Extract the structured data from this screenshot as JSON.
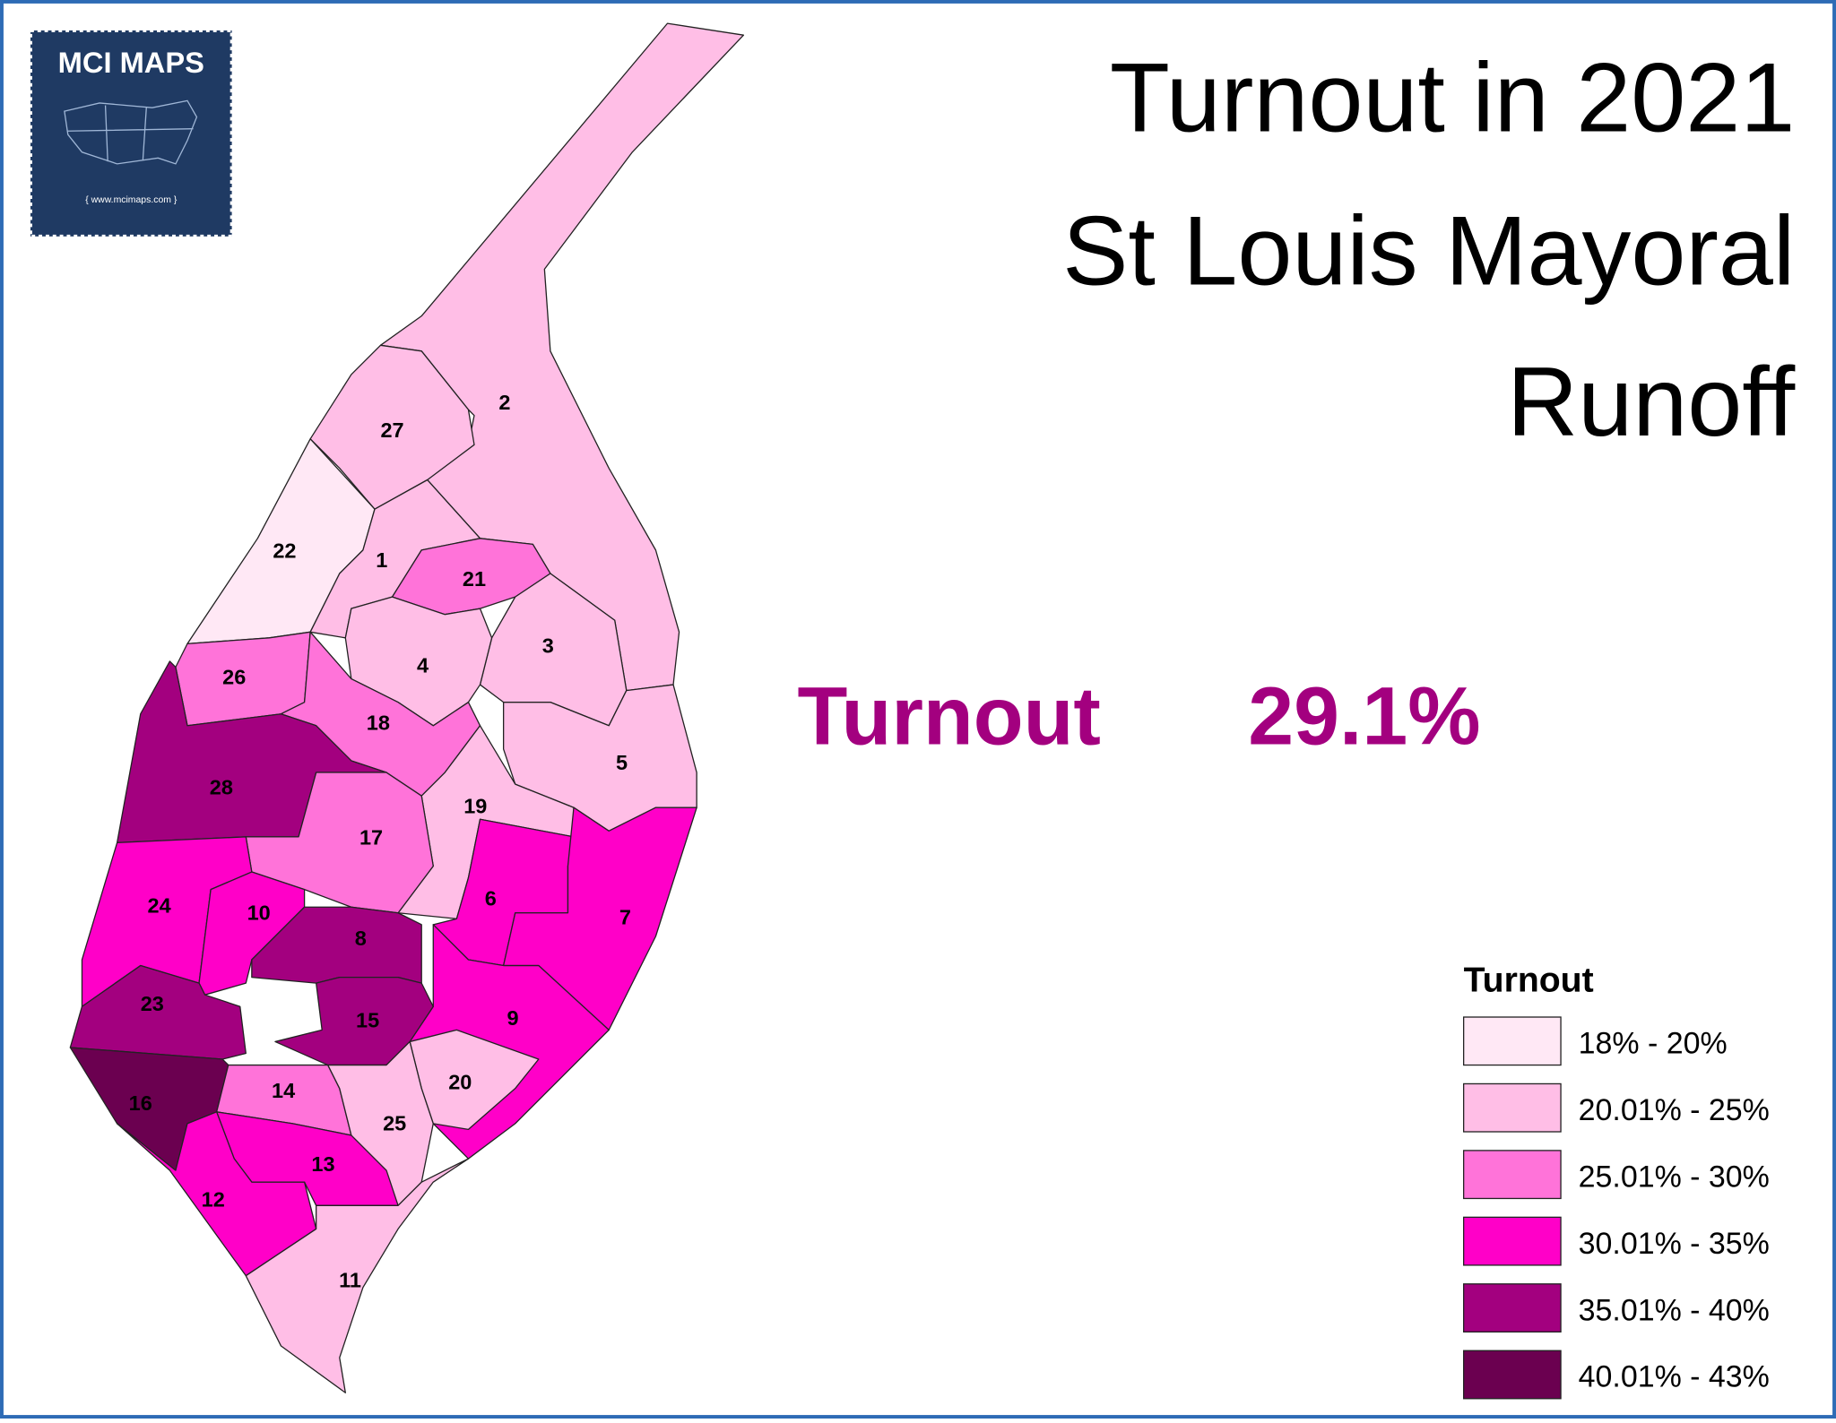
{
  "logo": {
    "name": "MCI MAPS",
    "url": "{  www.mcimaps.com  }"
  },
  "title": [
    "Turnout in 2021",
    "St Louis Mayoral",
    "Runoff"
  ],
  "summary": {
    "label": "Turnout",
    "value": "29.1%"
  },
  "legend": {
    "title": "Turnout",
    "items": [
      {
        "label": "18% - 20%",
        "color": "#ffe8f5"
      },
      {
        "label": "20.01% - 25%",
        "color": "#ffbee6"
      },
      {
        "label": "25.01% - 30%",
        "color": "#ff73d9"
      },
      {
        "label": "30.01% - 35%",
        "color": "#ff00c8"
      },
      {
        "label": "35.01% - 40%",
        "color": "#a3007f"
      },
      {
        "label": "40.01% - 43%",
        "color": "#6b0050"
      }
    ]
  },
  "wards": [
    {
      "label": "1",
      "color": "#ffbee6"
    },
    {
      "label": "2",
      "color": "#ffbee6"
    },
    {
      "label": "3",
      "color": "#ffbee6"
    },
    {
      "label": "4",
      "color": "#ffbee6"
    },
    {
      "label": "5",
      "color": "#ffbee6"
    },
    {
      "label": "6",
      "color": "#ff00c8"
    },
    {
      "label": "7",
      "color": "#ff00c8"
    },
    {
      "label": "8",
      "color": "#a3007f"
    },
    {
      "label": "9",
      "color": "#ff00c8"
    },
    {
      "label": "10",
      "color": "#ff00c8"
    },
    {
      "label": "11",
      "color": "#ffbee6"
    },
    {
      "label": "12",
      "color": "#ff00c8"
    },
    {
      "label": "13",
      "color": "#ff00c8"
    },
    {
      "label": "14",
      "color": "#ff73d9"
    },
    {
      "label": "15",
      "color": "#a3007f"
    },
    {
      "label": "16",
      "color": "#6b0050"
    },
    {
      "label": "17",
      "color": "#ff73d9"
    },
    {
      "label": "18",
      "color": "#ff73d9"
    },
    {
      "label": "19",
      "color": "#ffbee6"
    },
    {
      "label": "20",
      "color": "#ffbee6"
    },
    {
      "label": "21",
      "color": "#ff73d9"
    },
    {
      "label": "22",
      "color": "#ffe8f5"
    },
    {
      "label": "23",
      "color": "#a3007f"
    },
    {
      "label": "24",
      "color": "#ff00c8"
    },
    {
      "label": "25",
      "color": "#ffbee6"
    },
    {
      "label": "26",
      "color": "#ff73d9"
    },
    {
      "label": "27",
      "color": "#ffbee6"
    },
    {
      "label": "28",
      "color": "#a3007f"
    }
  ]
}
